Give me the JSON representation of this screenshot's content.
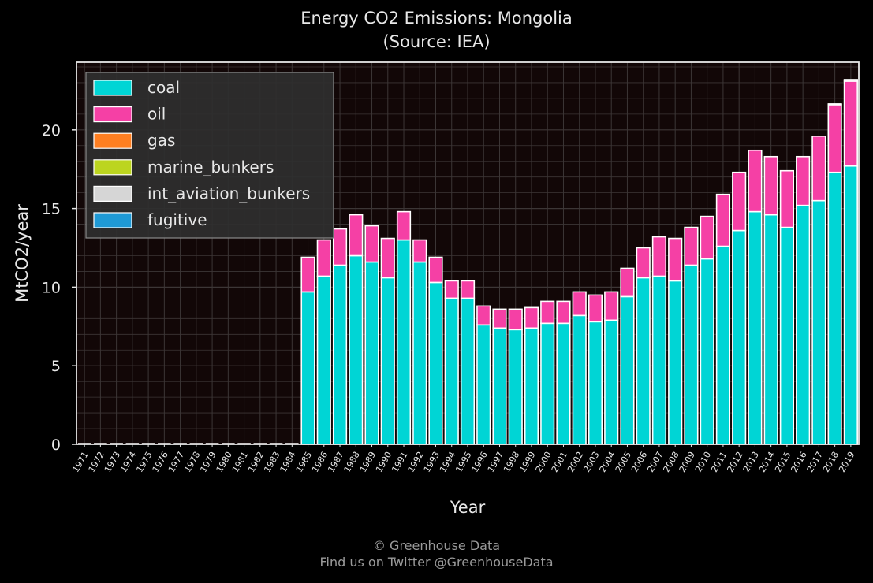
{
  "chart_data": {
    "type": "bar",
    "stacked": true,
    "title": "Energy CO2 Emissions: Mongolia",
    "subtitle": "(Source: IEA)",
    "xlabel": "Year",
    "ylabel": "MtCO2/year",
    "ylim": [
      0,
      24.3
    ],
    "yticks": [
      0,
      5,
      10,
      15,
      20
    ],
    "grid": true,
    "legend_position": "top-left",
    "categories": [
      "1971",
      "1972",
      "1973",
      "1974",
      "1975",
      "1976",
      "1977",
      "1978",
      "1979",
      "1980",
      "1981",
      "1982",
      "1983",
      "1984",
      "1985",
      "1986",
      "1987",
      "1988",
      "1989",
      "1990",
      "1991",
      "1992",
      "1993",
      "1994",
      "1995",
      "1996",
      "1997",
      "1998",
      "1999",
      "2000",
      "2001",
      "2002",
      "2003",
      "2004",
      "2005",
      "2006",
      "2007",
      "2008",
      "2009",
      "2010",
      "2011",
      "2012",
      "2013",
      "2014",
      "2015",
      "2016",
      "2017",
      "2018",
      "2019"
    ],
    "series": [
      {
        "name": "coal",
        "color": "#00d5d5",
        "values": [
          0,
          0,
          0,
          0,
          0,
          0,
          0,
          0,
          0,
          0,
          0,
          0,
          0,
          0,
          9.7,
          10.7,
          11.4,
          12.0,
          11.6,
          10.6,
          13.0,
          11.6,
          10.3,
          9.3,
          9.3,
          7.6,
          7.4,
          7.3,
          7.4,
          7.7,
          7.7,
          8.2,
          7.8,
          7.9,
          9.4,
          10.6,
          10.7,
          10.4,
          11.4,
          11.8,
          12.6,
          13.6,
          14.8,
          14.6,
          13.8,
          15.2,
          15.5,
          17.3,
          17.7
        ]
      },
      {
        "name": "oil",
        "color": "#f540a5",
        "values": [
          0,
          0,
          0,
          0,
          0,
          0,
          0,
          0,
          0,
          0,
          0,
          0,
          0,
          0,
          2.2,
          2.3,
          2.3,
          2.6,
          2.3,
          2.5,
          1.8,
          1.4,
          1.6,
          1.1,
          1.1,
          1.2,
          1.2,
          1.3,
          1.3,
          1.4,
          1.4,
          1.5,
          1.7,
          1.8,
          1.8,
          1.9,
          2.5,
          2.7,
          2.4,
          2.7,
          3.3,
          3.7,
          3.9,
          3.7,
          3.6,
          3.1,
          4.1,
          4.3,
          5.4
        ]
      },
      {
        "name": "gas",
        "color": "#ff7f21",
        "values": [
          0,
          0,
          0,
          0,
          0,
          0,
          0,
          0,
          0,
          0,
          0,
          0,
          0,
          0,
          0,
          0,
          0,
          0,
          0,
          0,
          0,
          0,
          0,
          0,
          0,
          0,
          0,
          0,
          0,
          0,
          0,
          0,
          0,
          0,
          0,
          0,
          0,
          0,
          0,
          0,
          0,
          0,
          0,
          0,
          0,
          0,
          0,
          0,
          0
        ]
      },
      {
        "name": "marine_bunkers",
        "color": "#bcd51f",
        "values": [
          0,
          0,
          0,
          0,
          0,
          0,
          0,
          0,
          0,
          0,
          0,
          0,
          0,
          0,
          0,
          0,
          0,
          0,
          0,
          0,
          0,
          0,
          0,
          0,
          0,
          0,
          0,
          0,
          0,
          0,
          0,
          0,
          0,
          0,
          0,
          0,
          0,
          0,
          0,
          0,
          0,
          0,
          0,
          0,
          0,
          0,
          0,
          0,
          0
        ]
      },
      {
        "name": "int_aviation_bunkers",
        "color": "#d6d6d6",
        "values": [
          0,
          0,
          0,
          0,
          0,
          0,
          0,
          0,
          0,
          0,
          0,
          0,
          0,
          0,
          0,
          0,
          0,
          0,
          0,
          0,
          0,
          0,
          0,
          0,
          0,
          0,
          0,
          0,
          0,
          0,
          0,
          0,
          0,
          0,
          0,
          0,
          0,
          0,
          0,
          0,
          0,
          0,
          0,
          0,
          0,
          0,
          0,
          0.05,
          0.1
        ]
      },
      {
        "name": "fugitive",
        "color": "#1f9ad6",
        "values": [
          0,
          0,
          0,
          0,
          0,
          0,
          0,
          0,
          0,
          0,
          0,
          0,
          0,
          0,
          0,
          0,
          0,
          0,
          0,
          0,
          0,
          0,
          0,
          0,
          0,
          0,
          0,
          0,
          0,
          0,
          0,
          0,
          0,
          0,
          0,
          0,
          0,
          0,
          0,
          0,
          0,
          0,
          0,
          0,
          0,
          0,
          0,
          0,
          0
        ]
      }
    ]
  },
  "footer": {
    "credit": "© Greenhouse Data",
    "twitter": "Find us on Twitter @GreenhouseData"
  },
  "colors": {
    "page_background": "#000000",
    "plot_background": "#120707",
    "grid": "#3c3636",
    "text": "#e8e8e8",
    "footer_text": "#9a9a9a"
  }
}
